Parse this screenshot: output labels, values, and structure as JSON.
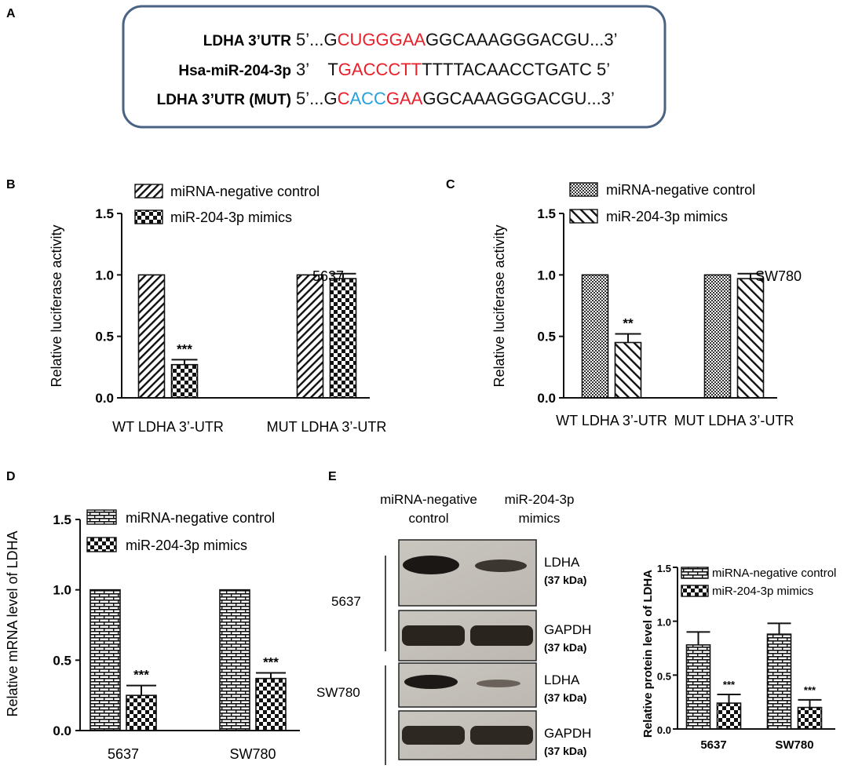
{
  "panels": {
    "A": "A",
    "B": "B",
    "C": "C",
    "D": "D",
    "E": "E"
  },
  "colors": {
    "seed_red": "#e8202a",
    "mut_blue": "#27a0e0",
    "box_border": "#4a6283"
  },
  "panel_a": {
    "rows": [
      {
        "label": "LDHA 3’UTR",
        "segments": [
          {
            "text": "5’...G",
            "color": "black"
          },
          {
            "text": "CUGGGAA",
            "color": "red"
          },
          {
            "text": "GGCAAAGGGACGU...3’",
            "color": "black"
          }
        ]
      },
      {
        "label": "Hsa-miR-204-3p",
        "segments": [
          {
            "text": "3’    T",
            "color": "black"
          },
          {
            "text": "GACCCTT",
            "color": "red"
          },
          {
            "text": "TTTTACAACCTGATC 5’",
            "color": "black"
          }
        ]
      },
      {
        "label": "LDHA 3’UTR (MUT)",
        "segments": [
          {
            "text": "5’...G",
            "color": "black"
          },
          {
            "text": "C",
            "color": "red"
          },
          {
            "text": "ACC",
            "color": "blue"
          },
          {
            "text": "GAA",
            "color": "red"
          },
          {
            "text": "GGCAAAGGGACGU...3’",
            "color": "black"
          }
        ]
      }
    ]
  },
  "panel_e_blot": {
    "col_headers": [
      "miRNA-negative\ncontrol",
      "miR-204-3p\nmimics"
    ],
    "groups": [
      "5637",
      "SW780"
    ],
    "bands": [
      {
        "protein": "LDHA",
        "size": "(37 kDa)"
      },
      {
        "protein": "GAPDH",
        "size": "(37 kDa)"
      },
      {
        "protein": "LDHA",
        "size": "(37 kDa)"
      },
      {
        "protein": "GAPDH",
        "size": "(37 kDa)"
      }
    ]
  },
  "chart_data": [
    {
      "id": "B",
      "type": "bar",
      "categories": [
        "WT LDHA 3’-UTR",
        "MUT LDHA 3’-UTR"
      ],
      "ylabel": "Relative luciferase activity",
      "ylim": [
        0,
        1.5
      ],
      "yticks": [
        "0.0",
        "0.5",
        "1.0",
        "1.5"
      ],
      "annotation": "5637",
      "legend_position": "top",
      "series": [
        {
          "name": "miRNA-negative control",
          "pattern": "diag",
          "values": [
            1.0,
            1.0
          ],
          "errors": [
            0,
            0
          ]
        },
        {
          "name": "miR-204-3p mimics",
          "pattern": "checker",
          "values": [
            0.27,
            0.97
          ],
          "errors": [
            0.04,
            0.04
          ]
        }
      ],
      "significance": [
        [
          "",
          ""
        ],
        [
          "***",
          ""
        ]
      ]
    },
    {
      "id": "C",
      "type": "bar",
      "categories": [
        "WT LDHA 3’-UTR",
        "MUT LDHA 3’-UTR"
      ],
      "ylabel": "Relative luciferase activity",
      "ylim": [
        0,
        1.5
      ],
      "yticks": [
        "0.0",
        "0.5",
        "1.0",
        "1.5"
      ],
      "annotation": "SW780",
      "legend_position": "top",
      "series": [
        {
          "name": "miRNA-negative control",
          "pattern": "finecheck",
          "values": [
            1.0,
            1.0
          ],
          "errors": [
            0,
            0
          ]
        },
        {
          "name": "miR-204-3p mimics",
          "pattern": "hatch",
          "values": [
            0.45,
            0.97
          ],
          "errors": [
            0.07,
            0.04
          ]
        }
      ],
      "significance": [
        [
          "",
          ""
        ],
        [
          "**",
          ""
        ]
      ]
    },
    {
      "id": "D",
      "type": "bar",
      "categories": [
        "5637",
        "SW780"
      ],
      "ylabel": "Relative mRNA level  of LDHA",
      "ylim": [
        0,
        1.5
      ],
      "yticks": [
        "0.0",
        "0.5",
        "1.0",
        "1.5"
      ],
      "legend_position": "top",
      "series": [
        {
          "name": "miRNA-negative control",
          "pattern": "brick",
          "values": [
            1.0,
            1.0
          ],
          "errors": [
            0,
            0
          ]
        },
        {
          "name": "miR-204-3p mimics",
          "pattern": "checker",
          "values": [
            0.25,
            0.37
          ],
          "errors": [
            0.07,
            0.04
          ]
        }
      ],
      "significance": [
        [
          "",
          ""
        ],
        [
          "***",
          "***"
        ]
      ]
    },
    {
      "id": "E",
      "type": "bar",
      "categories": [
        "5637",
        "SW780"
      ],
      "ylabel": "Relative protein level of LDHA",
      "ylim": [
        0,
        1.5
      ],
      "yticks": [
        "0.0",
        "0.5",
        "1.0",
        "1.5"
      ],
      "legend_position": "top",
      "series": [
        {
          "name": "miRNA-negative control",
          "pattern": "brick",
          "values": [
            0.78,
            0.88
          ],
          "errors": [
            0.12,
            0.1
          ]
        },
        {
          "name": "miR-204-3p mimics",
          "pattern": "checker",
          "values": [
            0.24,
            0.2
          ],
          "errors": [
            0.08,
            0.07
          ]
        }
      ],
      "significance": [
        [
          "",
          ""
        ],
        [
          "***",
          "***"
        ]
      ]
    }
  ]
}
